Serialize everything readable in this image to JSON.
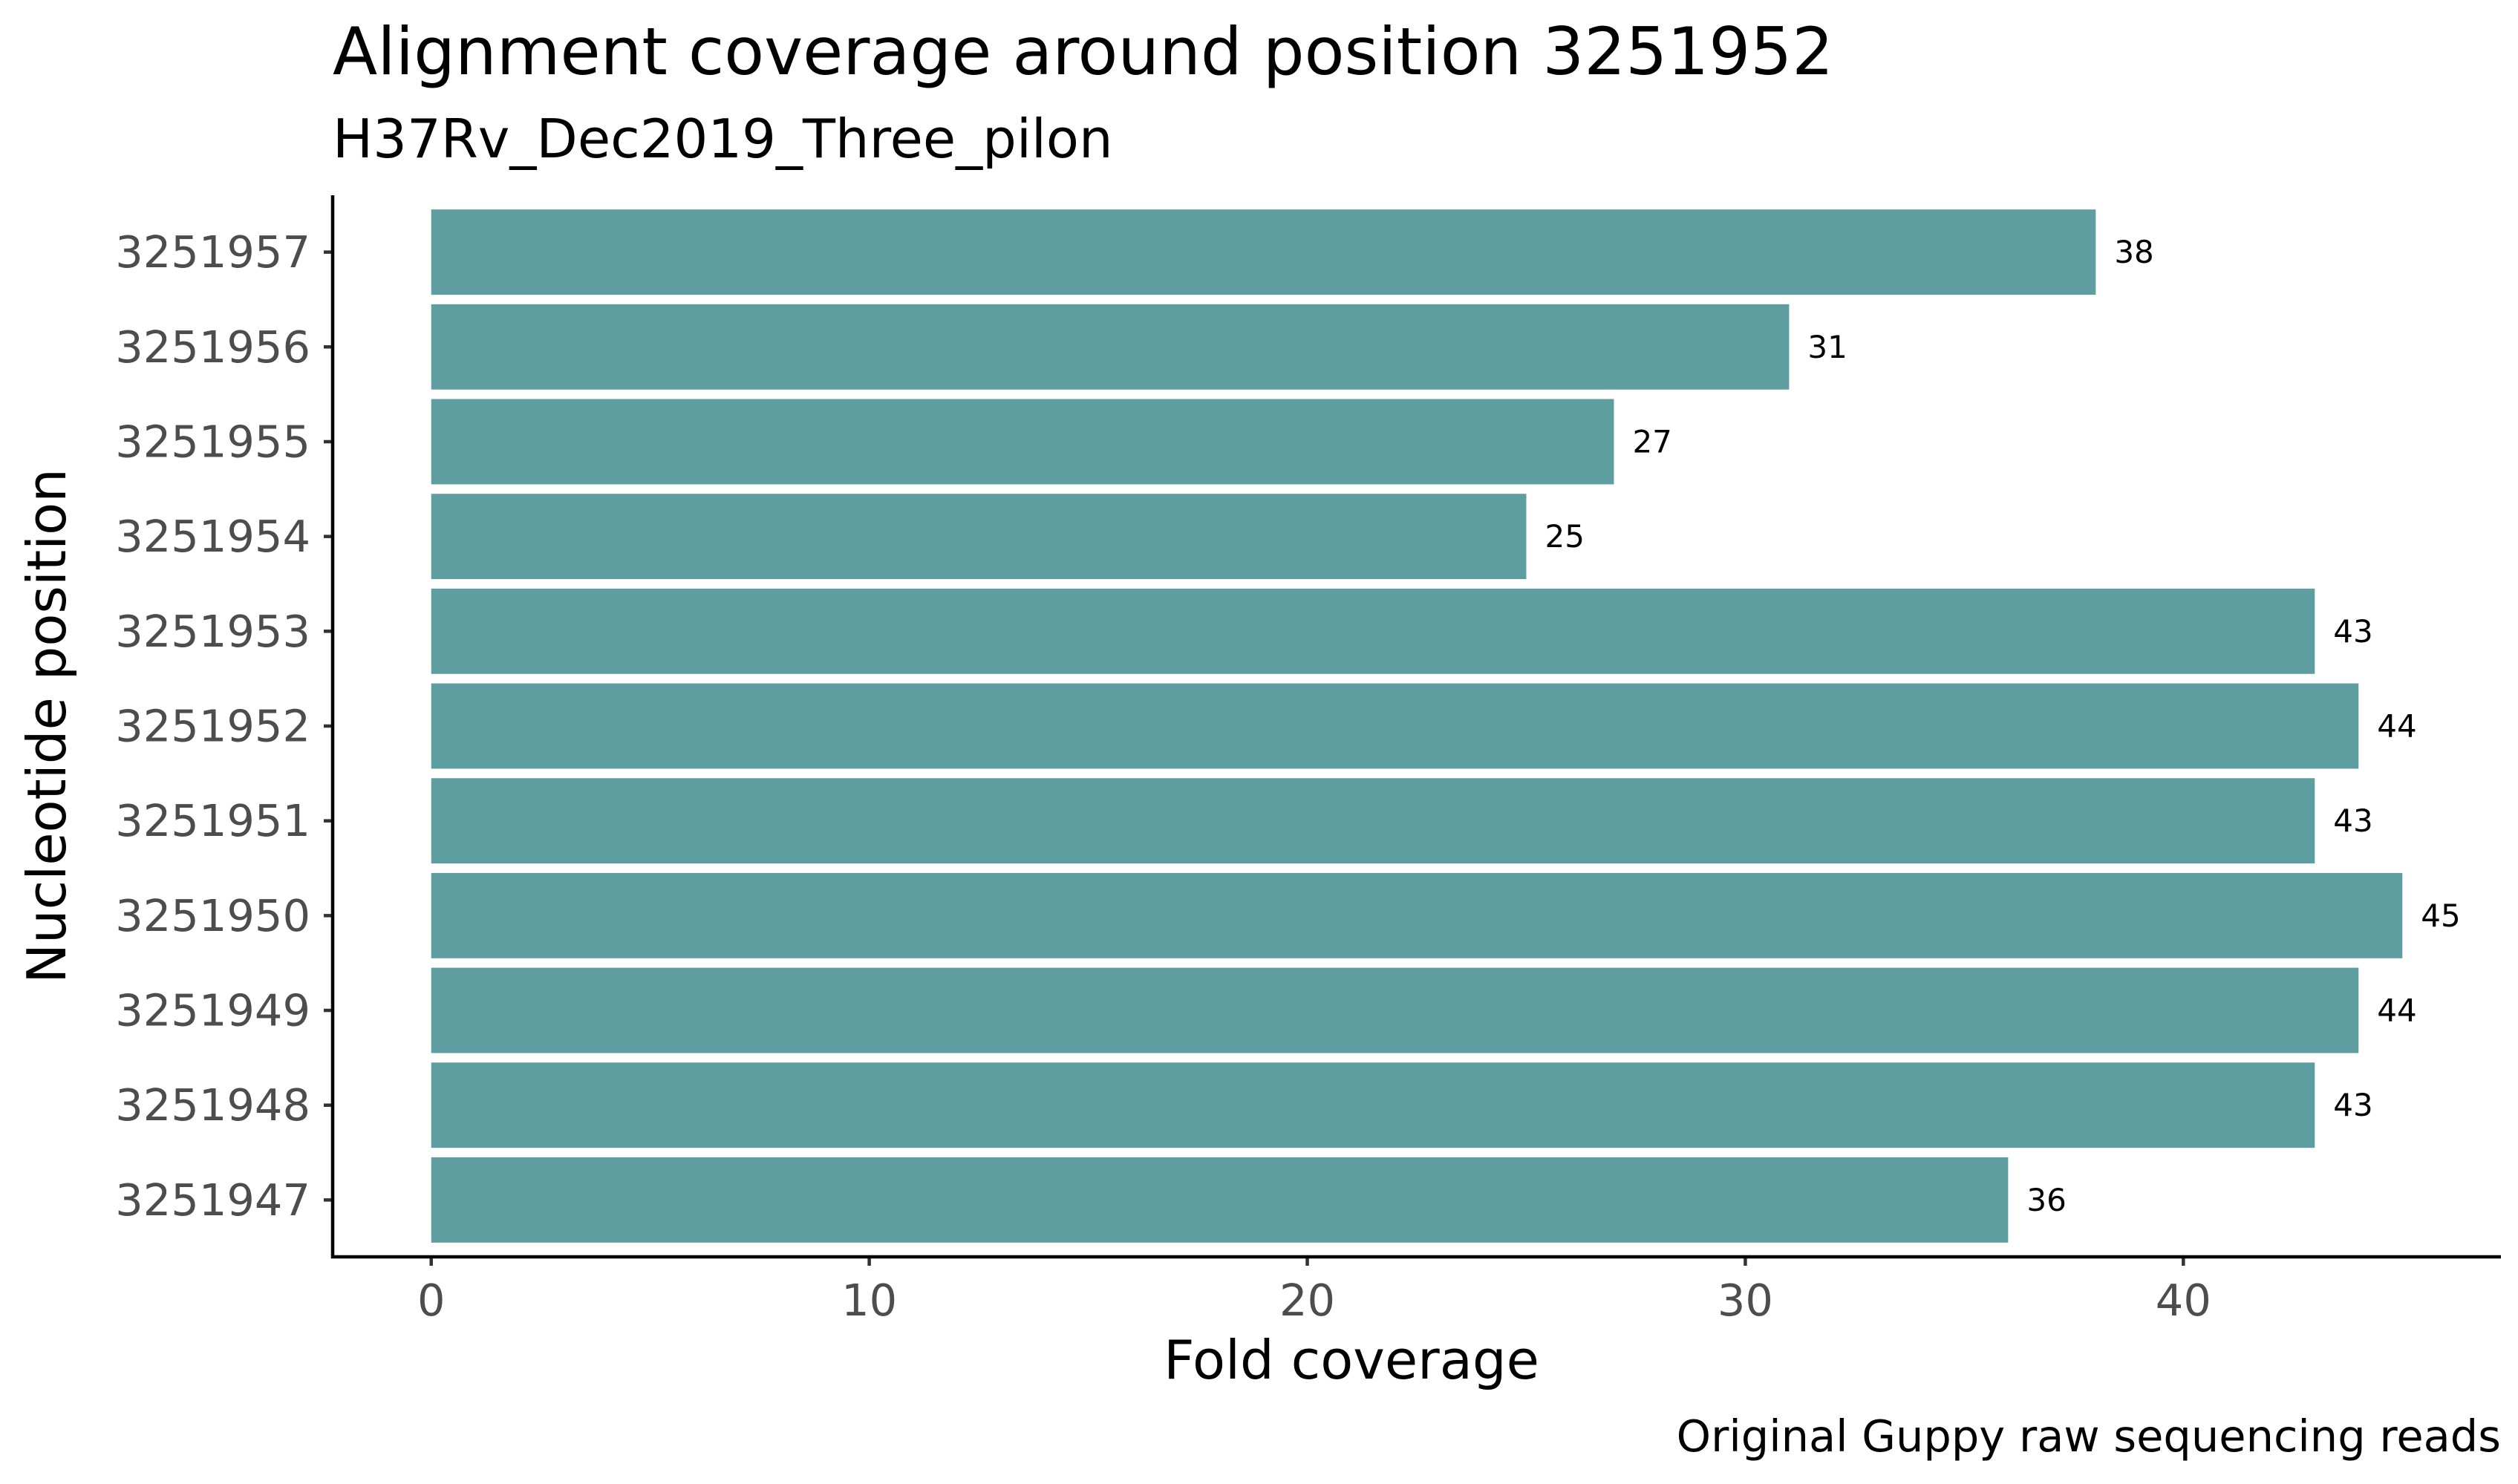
{
  "chart_data": {
    "type": "bar",
    "orientation": "horizontal",
    "title": "Alignment coverage around position 3251952",
    "subtitle": "H37Rv_Dec2019_Three_pilon",
    "xlabel": "Fold coverage",
    "ylabel": "Nucleotide position",
    "caption": "Original Guppy raw sequencing reads",
    "categories": [
      "3251957",
      "3251956",
      "3251955",
      "3251954",
      "3251953",
      "3251952",
      "3251951",
      "3251950",
      "3251949",
      "3251948",
      "3251947"
    ],
    "values": [
      38,
      31,
      27,
      25,
      43,
      44,
      43,
      45,
      44,
      43,
      36
    ],
    "x_ticks": [
      0,
      10,
      20,
      30,
      40
    ],
    "xlim": [
      -2.25,
      47.25
    ],
    "bar_color": "#5f9ea0",
    "grid": false,
    "legend": "none"
  }
}
